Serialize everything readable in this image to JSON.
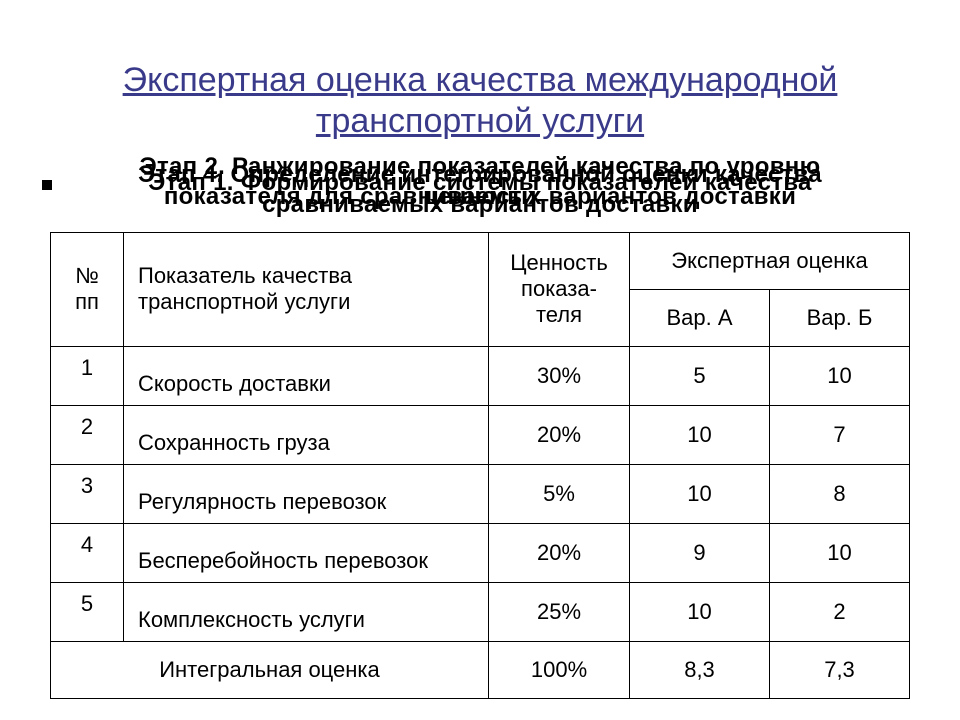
{
  "title": "Экспертная оценка качества международной транспортной услуги",
  "subtitles": [
    "Этап 2. Ранжирование показателей качества по уровню\nценности",
    "Этап 4. Определение интегрированной оценки качества\nсравниваемых вариантов доставки",
    "Этап 1. Формирование системы показателей качества",
    "показателя для сравниваемых вариантов доставки"
  ],
  "columns": {
    "num": "№ пп",
    "indicator": "Показатель качества транспортной услуги",
    "value": "Ценность показа-\nтеля",
    "expert": "Экспертная оценка",
    "varA": "Вар. А",
    "varB": "Вар. Б"
  },
  "rows": [
    {
      "n": "1",
      "ind": "Скорость доставки",
      "val": "30%",
      "a": "5",
      "b": "10"
    },
    {
      "n": "2",
      "ind": "Сохранность груза",
      "val": "20%",
      "a": "10",
      "b": "7"
    },
    {
      "n": "3",
      "ind": "Регулярность перевозок",
      "val": "5%",
      "a": "10",
      "b": "8"
    },
    {
      "n": "4",
      "ind": "Бесперебойность перевозок",
      "val": "20%",
      "a": "9",
      "b": "10"
    },
    {
      "n": "5",
      "ind": "Комплексность услуги",
      "val": "25%",
      "a": "10",
      "b": "2"
    }
  ],
  "total": {
    "label": "Интегральная оценка",
    "val": "100%",
    "a": "8,3",
    "b": "7,3"
  },
  "style": {
    "title_color": "#3a3a8a",
    "border_color": "#000000",
    "bg": "#ffffff",
    "font": "Arial",
    "title_fontsize": 34,
    "sub_fontsize": 24,
    "cell_fontsize": 22
  }
}
